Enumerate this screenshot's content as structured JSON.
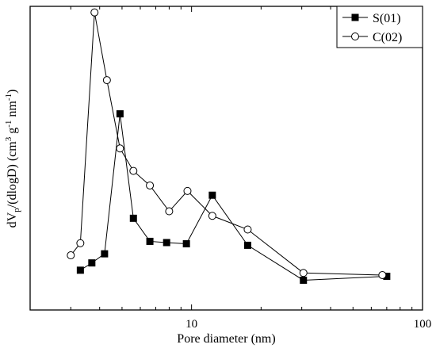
{
  "chart_data": {
    "type": "line",
    "title": "",
    "xlabel": "Pore diameter (nm)",
    "ylabel": {
      "main": "dV",
      "sub1": "p",
      "mid": "/(dlogD) (cm",
      "sup1": "3",
      "mid2": " g",
      "sup2": "-1",
      "mid3": " nm",
      "sup3": "-1",
      "end": ")"
    },
    "x_scale": "log",
    "xlim": [
      2,
      100
    ],
    "ylim": [
      0,
      1
    ],
    "x_ticks": [
      10,
      100
    ],
    "x_tick_labels": [
      "10",
      "100"
    ],
    "show_y_tick_labels": false,
    "grid": false,
    "legend_position": "top-right",
    "series": [
      {
        "name": "S(01)",
        "marker": "filled-square",
        "x": [
          3.3,
          3.7,
          4.2,
          4.9,
          5.6,
          6.6,
          7.8,
          9.5,
          12.3,
          17.5,
          30.5,
          70.0
        ],
        "y": [
          0.131,
          0.155,
          0.185,
          0.646,
          0.302,
          0.226,
          0.222,
          0.218,
          0.378,
          0.213,
          0.098,
          0.111
        ]
      },
      {
        "name": "C(02)",
        "marker": "open-circle",
        "x": [
          3.0,
          3.3,
          3.8,
          4.3,
          4.9,
          5.6,
          6.6,
          8.0,
          9.6,
          12.3,
          17.5,
          30.5,
          67.0
        ],
        "y": [
          0.18,
          0.22,
          0.98,
          0.757,
          0.532,
          0.458,
          0.41,
          0.325,
          0.392,
          0.31,
          0.265,
          0.122,
          0.115
        ]
      }
    ]
  }
}
